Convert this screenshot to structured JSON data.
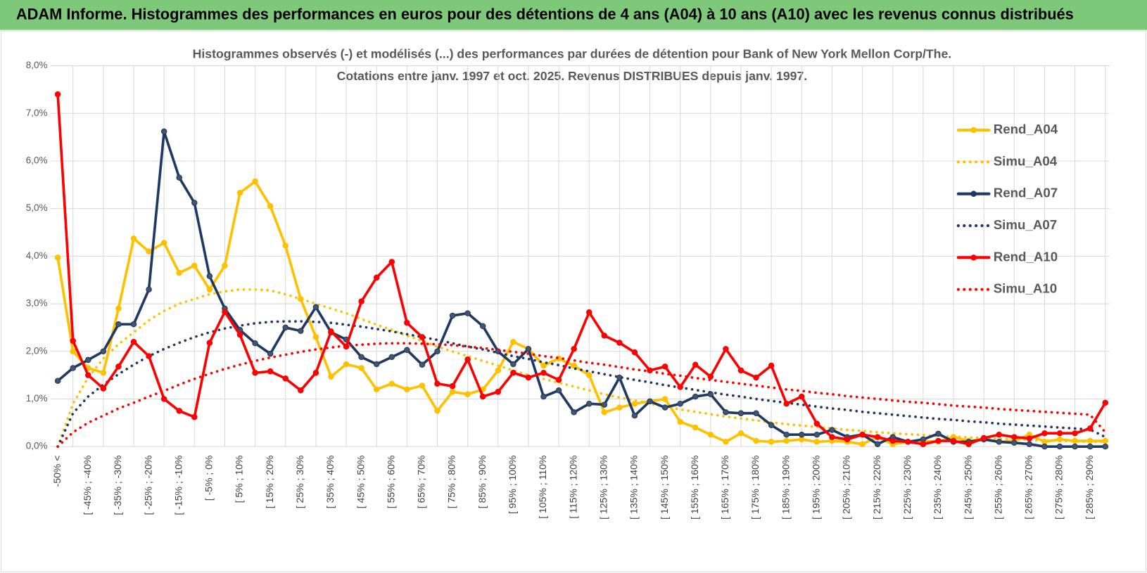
{
  "header": {
    "title": "ADAM Informe. Histogrammes des performances en euros pour des détentions de 4 ans (A04) à 10 ans (A10) avec les revenus connus distribués"
  },
  "chart_data": {
    "type": "line",
    "title": "Histogrammes observés (-) et modélisés (...) des performances par durées de détention pour Bank of New York Mellon Corp/The.",
    "subtitle": "Cotations entre janv. 1997 et oct. 2025.  Revenus DISTRIBUES depuis janv. 1997.",
    "categories": [
      "-50% <",
      null,
      "[ -45% ; -40%",
      null,
      "[ -35% ; -30%",
      null,
      "[ -25% ; -20%",
      null,
      "[ -15% ; -10%",
      null,
      "[ -5% ; 0%",
      null,
      "[ 5% ; 10%",
      null,
      "[ 15% ; 20%",
      null,
      "[ 25% ; 30%",
      null,
      "[ 35% ; 40%",
      null,
      "[ 45% ; 50%",
      null,
      "[ 55% ; 60%",
      null,
      "[ 65% ; 70%",
      null,
      "[ 75% ; 80%",
      null,
      "[ 85% ; 90%",
      null,
      "[ 95% ; 100%",
      null,
      "[ 105% ; 110%",
      null,
      "[ 115% ; 120%",
      null,
      "[ 125% ; 130%",
      null,
      "[ 135% ; 140%",
      null,
      "[ 145% ; 150%",
      null,
      "[ 155% ; 160%",
      null,
      "[ 165% ; 170%",
      null,
      "[ 175% ; 180%",
      null,
      "[ 185% ; 190%",
      null,
      "[ 195% ; 200%",
      null,
      "[ 205% ; 210%",
      null,
      "[ 215% ; 220%",
      null,
      "[ 225% ; 230%",
      null,
      "[ 235% ; 240%",
      null,
      "[ 245% ; 250%",
      null,
      "[ 255% ; 260%",
      null,
      "[ 265% ; 270%",
      null,
      "[ 275% ; 280%",
      null,
      "[ 285% ; 290%",
      null
    ],
    "ylim": [
      0,
      8
    ],
    "yticks": [
      {
        "value": 0,
        "label": "0,0%"
      },
      {
        "value": 1,
        "label": "1,0%"
      },
      {
        "value": 2,
        "label": "2,0%"
      },
      {
        "value": 3,
        "label": "3,0%"
      },
      {
        "value": 4,
        "label": "4,0%"
      },
      {
        "value": 5,
        "label": "5,0%"
      },
      {
        "value": 6,
        "label": "6,0%"
      },
      {
        "value": 7,
        "label": "7,0%"
      },
      {
        "value": 8,
        "label": "8,0%"
      }
    ],
    "grid": true,
    "legend": "right",
    "series": [
      {
        "name": "Rend_A04",
        "color": "#ffc000",
        "style": "solid",
        "markers": true,
        "values": [
          3.97,
          2.0,
          1.65,
          1.55,
          2.9,
          4.37,
          4.1,
          4.28,
          3.65,
          3.8,
          3.3,
          3.8,
          5.33,
          5.57,
          5.05,
          4.22,
          3.1,
          2.3,
          1.47,
          1.73,
          1.65,
          1.2,
          1.32,
          1.2,
          1.28,
          0.75,
          1.15,
          1.1,
          1.2,
          1.6,
          2.2,
          2.05,
          1.7,
          1.85,
          1.7,
          1.5,
          0.72,
          0.82,
          0.9,
          0.95,
          1.0,
          0.52,
          0.4,
          0.25,
          0.1,
          0.28,
          0.12,
          0.1,
          0.12,
          0.15,
          0.1,
          0.12,
          0.1,
          0.05,
          0.2,
          0.05,
          0.1,
          0.12,
          0.1,
          0.2,
          0.12,
          0.15,
          0.1,
          0.12,
          0.25,
          0.1,
          0.15,
          0.12,
          0.12,
          0.12
        ]
      },
      {
        "name": "Simu_A04",
        "color": "#ffc000",
        "style": "dotted",
        "markers": false,
        "values": [
          0,
          0.9,
          1.45,
          1.85,
          2.15,
          2.4,
          2.65,
          2.85,
          3.0,
          3.1,
          3.2,
          3.26,
          3.3,
          3.3,
          3.28,
          3.2,
          3.1,
          3.0,
          2.9,
          2.8,
          2.68,
          2.56,
          2.45,
          2.33,
          2.22,
          2.1,
          2.0,
          1.9,
          1.8,
          1.7,
          1.6,
          1.5,
          1.42,
          1.34,
          1.26,
          1.18,
          1.1,
          1.03,
          0.97,
          0.9,
          0.84,
          0.78,
          0.73,
          0.68,
          0.63,
          0.59,
          0.55,
          0.51,
          0.47,
          0.44,
          0.41,
          0.38,
          0.35,
          0.33,
          0.3,
          0.28,
          0.26,
          0.24,
          0.22,
          0.21,
          0.19,
          0.18,
          0.16,
          0.15,
          0.14,
          0.13,
          0.12,
          0.11,
          0.1,
          0.1
        ]
      },
      {
        "name": "Rend_A07",
        "color": "#1f3864",
        "style": "solid",
        "markers": true,
        "values": [
          1.38,
          1.65,
          1.82,
          2.0,
          2.57,
          2.57,
          3.3,
          6.62,
          5.65,
          5.12,
          3.58,
          2.9,
          2.45,
          2.17,
          1.95,
          2.5,
          2.43,
          2.93,
          2.4,
          2.25,
          1.88,
          1.73,
          1.88,
          2.03,
          1.72,
          2.0,
          2.75,
          2.8,
          2.53,
          2.0,
          1.73,
          2.05,
          1.05,
          1.18,
          0.72,
          0.9,
          0.88,
          1.45,
          0.65,
          0.95,
          0.82,
          0.9,
          1.05,
          1.1,
          0.72,
          0.7,
          0.7,
          0.45,
          0.25,
          0.25,
          0.25,
          0.35,
          0.2,
          0.25,
          0.05,
          0.2,
          0.1,
          0.15,
          0.27,
          0.1,
          0.1,
          0.15,
          0.1,
          0.08,
          0.05,
          0,
          0,
          0,
          0,
          0
        ]
      },
      {
        "name": "Simu_A07",
        "color": "#1f3864",
        "style": "dotted",
        "markers": false,
        "values": [
          0,
          0.7,
          1.05,
          1.3,
          1.52,
          1.72,
          1.9,
          2.05,
          2.18,
          2.3,
          2.4,
          2.48,
          2.54,
          2.59,
          2.62,
          2.63,
          2.63,
          2.62,
          2.6,
          2.56,
          2.52,
          2.47,
          2.42,
          2.36,
          2.3,
          2.24,
          2.17,
          2.1,
          2.04,
          1.97,
          1.9,
          1.84,
          1.77,
          1.71,
          1.64,
          1.58,
          1.52,
          1.46,
          1.4,
          1.35,
          1.29,
          1.24,
          1.19,
          1.14,
          1.09,
          1.05,
          1.0,
          0.96,
          0.92,
          0.88,
          0.84,
          0.8,
          0.77,
          0.73,
          0.7,
          0.67,
          0.64,
          0.61,
          0.58,
          0.56,
          0.53,
          0.51,
          0.48,
          0.46,
          0.44,
          0.42,
          0.4,
          0.38,
          0.36,
          0.2
        ]
      },
      {
        "name": "Rend_A10",
        "color": "#ff0000",
        "style": "solid",
        "markers": true,
        "values": [
          7.4,
          2.22,
          1.5,
          1.22,
          1.68,
          2.2,
          1.9,
          1.0,
          0.75,
          0.62,
          2.18,
          2.83,
          2.35,
          1.55,
          1.58,
          1.43,
          1.18,
          1.55,
          2.42,
          2.1,
          3.05,
          3.55,
          3.88,
          2.6,
          2.3,
          1.32,
          1.27,
          1.83,
          1.05,
          1.15,
          1.55,
          1.45,
          1.55,
          1.4,
          2.05,
          2.82,
          2.33,
          2.18,
          1.98,
          1.6,
          1.68,
          1.25,
          1.72,
          1.47,
          2.05,
          1.6,
          1.45,
          1.7,
          0.9,
          1.05,
          0.48,
          0.2,
          0.15,
          0.25,
          0.2,
          0.12,
          0.1,
          0.05,
          0.12,
          0.12,
          0.05,
          0.18,
          0.25,
          0.2,
          0.17,
          0.28,
          0.28,
          0.28,
          0.38,
          0.92
        ]
      },
      {
        "name": "Simu_A10",
        "color": "#ff0000",
        "style": "dotted",
        "markers": false,
        "values": [
          0,
          0.3,
          0.5,
          0.65,
          0.8,
          0.92,
          1.05,
          1.17,
          1.3,
          1.42,
          1.53,
          1.63,
          1.72,
          1.8,
          1.87,
          1.93,
          1.99,
          2.04,
          2.08,
          2.12,
          2.14,
          2.16,
          2.17,
          2.17,
          2.16,
          2.15,
          2.13,
          2.1,
          2.07,
          2.03,
          1.99,
          1.95,
          1.9,
          1.86,
          1.81,
          1.76,
          1.72,
          1.67,
          1.62,
          1.58,
          1.53,
          1.49,
          1.44,
          1.4,
          1.36,
          1.32,
          1.28,
          1.24,
          1.2,
          1.17,
          1.13,
          1.1,
          1.06,
          1.03,
          1.0,
          0.97,
          0.94,
          0.92,
          0.89,
          0.86,
          0.84,
          0.82,
          0.79,
          0.77,
          0.75,
          0.73,
          0.71,
          0.69,
          0.67,
          0.3
        ]
      }
    ]
  }
}
